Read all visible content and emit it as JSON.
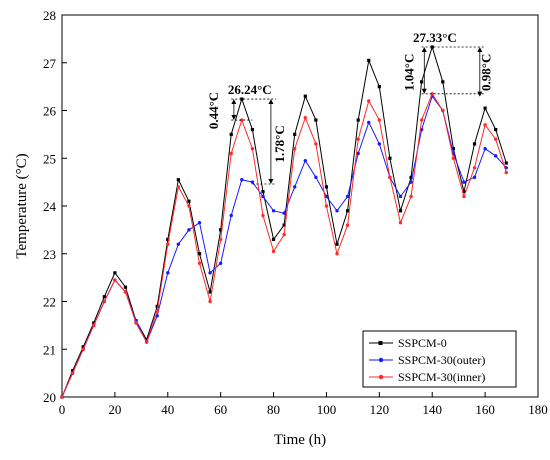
{
  "chart_data": {
    "type": "line",
    "title": "",
    "xlabel": "Time (h)",
    "ylabel": "Temperature (°C)",
    "xlim": [
      0,
      180
    ],
    "ylim": [
      20,
      28
    ],
    "xticks": [
      0,
      20,
      40,
      60,
      80,
      100,
      120,
      140,
      160,
      180
    ],
    "yticks": [
      20,
      21,
      22,
      23,
      24,
      25,
      26,
      27,
      28
    ],
    "grid": false,
    "legend_position": "bottom-right",
    "series": [
      {
        "name": "SSPCM-0",
        "color": "#000000",
        "marker": "square",
        "x": [
          0,
          4,
          8,
          12,
          16,
          20,
          24,
          28,
          32,
          36,
          40,
          44,
          48,
          52,
          56,
          60,
          64,
          68,
          72,
          76,
          80,
          84,
          88,
          92,
          96,
          100,
          104,
          108,
          112,
          116,
          120,
          124,
          128,
          132,
          136,
          140,
          144,
          148,
          152,
          156,
          160,
          164,
          168
        ],
        "y": [
          20.0,
          20.55,
          21.05,
          21.55,
          22.1,
          22.6,
          22.3,
          21.6,
          21.2,
          21.9,
          23.3,
          24.55,
          24.1,
          23.0,
          22.2,
          23.5,
          25.5,
          26.24,
          25.6,
          24.3,
          23.3,
          23.6,
          25.5,
          26.3,
          25.8,
          24.4,
          23.2,
          23.9,
          25.8,
          27.05,
          26.5,
          25.0,
          23.9,
          24.6,
          26.6,
          27.33,
          26.6,
          25.2,
          24.3,
          25.3,
          26.05,
          25.6,
          24.9
        ]
      },
      {
        "name": "SSPCM-30(outer)",
        "color": "#1a1aff",
        "marker": "circle",
        "x": [
          0,
          4,
          8,
          12,
          16,
          20,
          24,
          28,
          32,
          36,
          40,
          44,
          48,
          52,
          56,
          60,
          64,
          68,
          72,
          76,
          80,
          84,
          88,
          92,
          96,
          100,
          104,
          108,
          112,
          116,
          120,
          124,
          128,
          132,
          136,
          140,
          144,
          148,
          152,
          156,
          160,
          164,
          168
        ],
        "y": [
          20.0,
          20.5,
          21.0,
          21.5,
          22.0,
          22.45,
          22.2,
          21.6,
          21.15,
          21.7,
          22.6,
          23.2,
          23.5,
          23.65,
          22.6,
          22.8,
          23.8,
          24.55,
          24.5,
          24.2,
          23.9,
          23.85,
          24.4,
          24.95,
          24.6,
          24.2,
          23.9,
          24.2,
          25.1,
          25.75,
          25.3,
          24.6,
          24.2,
          24.5,
          25.6,
          26.3,
          26.0,
          25.1,
          24.5,
          24.6,
          25.2,
          25.05,
          24.8
        ]
      },
      {
        "name": "SSPCM-30(inner)",
        "color": "#ff2a2a",
        "marker": "circle",
        "x": [
          0,
          4,
          8,
          12,
          16,
          20,
          24,
          28,
          32,
          36,
          40,
          44,
          48,
          52,
          56,
          60,
          64,
          68,
          72,
          76,
          80,
          84,
          88,
          92,
          96,
          100,
          104,
          108,
          112,
          116,
          120,
          124,
          128,
          132,
          136,
          140,
          144,
          148,
          152,
          156,
          160,
          164,
          168
        ],
        "y": [
          20.0,
          20.5,
          21.0,
          21.5,
          22.0,
          22.45,
          22.2,
          21.55,
          21.15,
          21.8,
          23.2,
          24.4,
          24.0,
          22.8,
          22.0,
          23.3,
          25.1,
          25.8,
          25.2,
          23.8,
          23.05,
          23.4,
          25.2,
          25.85,
          25.3,
          24.0,
          23.0,
          23.6,
          25.4,
          26.2,
          25.8,
          24.6,
          23.65,
          24.2,
          25.8,
          26.35,
          26.0,
          25.0,
          24.2,
          24.8,
          25.7,
          25.4,
          24.7
        ]
      }
    ],
    "annotations": [
      {
        "text": "26.24°C",
        "x": 70,
        "y": 26.24
      },
      {
        "text": "0.44°C",
        "x": 64,
        "y": 26.0
      },
      {
        "text": "1.78°C",
        "x": 78,
        "y": 25.3
      },
      {
        "text": "27.33°C",
        "x": 141,
        "y": 27.33
      },
      {
        "text": "1.04°C",
        "x": 137,
        "y": 26.8
      },
      {
        "text": "0.98°C",
        "x": 162,
        "y": 26.8
      }
    ]
  }
}
